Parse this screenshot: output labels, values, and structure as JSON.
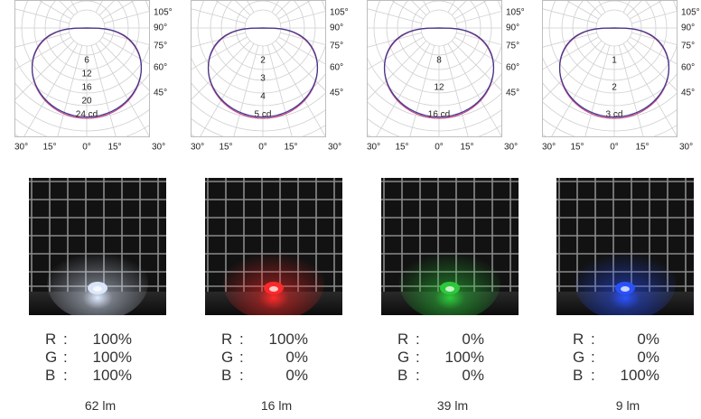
{
  "polar_common": {
    "top_labels": [
      "105°",
      "90°",
      "75°",
      "60°",
      "45°"
    ],
    "bottom_labels": [
      "30°",
      "15°",
      "0°",
      "15°",
      "30°"
    ]
  },
  "panels": [
    {
      "rgb": [
        {
          "ch": "R",
          "sep": ":",
          "val": "100%"
        },
        {
          "ch": "G",
          "sep": ":",
          "val": "100%"
        },
        {
          "ch": "B",
          "sep": ":",
          "val": "100%"
        }
      ],
      "lumen": "62 lm",
      "light_color": "#dfeaff",
      "scale": [
        "6",
        "12",
        "16",
        "20",
        "24 cd"
      ],
      "scale_max": 24
    },
    {
      "rgb": [
        {
          "ch": "R",
          "sep": ":",
          "val": "100%"
        },
        {
          "ch": "G",
          "sep": ":",
          "val": "0%"
        },
        {
          "ch": "B",
          "sep": ":",
          "val": "0%"
        }
      ],
      "lumen": "16 lm",
      "light_color": "#ff2a2a",
      "scale": [
        "2",
        "3",
        "4",
        "5 cd"
      ],
      "scale_max": 5
    },
    {
      "rgb": [
        {
          "ch": "R",
          "sep": ":",
          "val": "0%"
        },
        {
          "ch": "G",
          "sep": ":",
          "val": "100%"
        },
        {
          "ch": "B",
          "sep": ":",
          "val": "0%"
        }
      ],
      "lumen": "39 lm",
      "light_color": "#2ccc3a",
      "scale": [
        "8",
        "12",
        "16 cd"
      ],
      "scale_max": 16
    },
    {
      "rgb": [
        {
          "ch": "R",
          "sep": ":",
          "val": "0%"
        },
        {
          "ch": "G",
          "sep": ":",
          "val": "0%"
        },
        {
          "ch": "B",
          "sep": ":",
          "val": "100%"
        }
      ],
      "lumen": "9 lm",
      "light_color": "#2a52ff",
      "scale": [
        "1",
        "2",
        "3 cd"
      ],
      "scale_max": 3
    }
  ],
  "chart_data": [
    {
      "type": "polar",
      "series": [
        {
          "values": [
            6,
            12,
            16,
            20,
            24
          ]
        }
      ],
      "unit": "cd"
    },
    {
      "type": "polar",
      "series": [
        {
          "values": [
            2,
            3,
            4,
            5
          ]
        }
      ],
      "unit": "cd"
    },
    {
      "type": "polar",
      "series": [
        {
          "values": [
            8,
            12,
            16
          ]
        }
      ],
      "unit": "cd"
    },
    {
      "type": "polar",
      "series": [
        {
          "values": [
            1,
            2,
            3
          ]
        }
      ],
      "unit": "cd"
    }
  ]
}
